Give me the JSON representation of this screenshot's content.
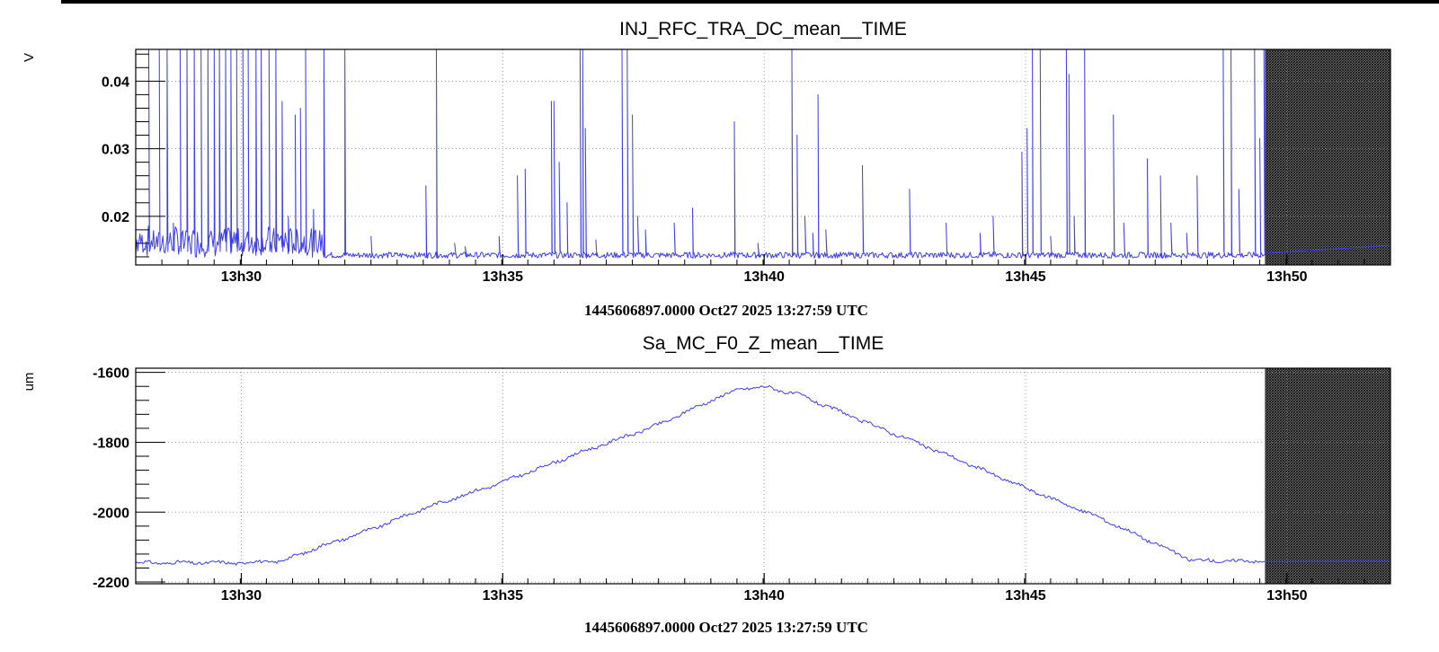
{
  "chart_data": [
    {
      "type": "line",
      "title": "INJ_RFC_TRA_DC_mean__TIME",
      "ylabel": "V",
      "xlabel": "1445606897.0000 Oct27 2025 13:27:59 UTC",
      "x_unit": "minutes since 13:27:59",
      "xlim": [
        0,
        24
      ],
      "ylim": [
        0.0128,
        0.0447
      ],
      "ytick_values": [
        0.02,
        0.03,
        0.04
      ],
      "ytick_labels": [
        "0.02",
        "0.03",
        "0.04"
      ],
      "xtick_values": [
        2.02,
        7.02,
        12.02,
        17.02,
        22.02
      ],
      "xtick_labels": [
        "13h30",
        "13h35",
        "13h40",
        "13h45",
        "13h50"
      ],
      "grid": true,
      "no_data_region": [
        21.6,
        24
      ],
      "line_color": "#3d3df5",
      "baseline": 0.0138,
      "spikes": [
        [
          0.25,
          0.045
        ],
        [
          0.45,
          0.045
        ],
        [
          0.6,
          0.045
        ],
        [
          0.72,
          0.019
        ],
        [
          0.85,
          0.045
        ],
        [
          0.98,
          0.045
        ],
        [
          1.12,
          0.045
        ],
        [
          1.25,
          0.045
        ],
        [
          1.38,
          0.045
        ],
        [
          1.5,
          0.045
        ],
        [
          1.6,
          0.045
        ],
        [
          1.72,
          0.045
        ],
        [
          1.82,
          0.045
        ],
        [
          1.93,
          0.045
        ],
        [
          2.05,
          0.045
        ],
        [
          2.15,
          0.045
        ],
        [
          2.3,
          0.045
        ],
        [
          2.4,
          0.045
        ],
        [
          2.55,
          0.045
        ],
        [
          2.68,
          0.045
        ],
        [
          2.8,
          0.037
        ],
        [
          2.92,
          0.02
        ],
        [
          3.05,
          0.035
        ],
        [
          3.15,
          0.036
        ],
        [
          3.25,
          0.045
        ],
        [
          3.4,
          0.021
        ],
        [
          3.6,
          0.045
        ],
        [
          4.0,
          0.045
        ],
        [
          4.5,
          0.017
        ],
        [
          5.55,
          0.0245
        ],
        [
          5.75,
          0.045
        ],
        [
          6.1,
          0.016
        ],
        [
          6.3,
          0.0155
        ],
        [
          6.95,
          0.017
        ],
        [
          7.3,
          0.026
        ],
        [
          7.45,
          0.027
        ],
        [
          7.95,
          0.037
        ],
        [
          8.0,
          0.037
        ],
        [
          8.1,
          0.028
        ],
        [
          8.25,
          0.022
        ],
        [
          8.5,
          0.045
        ],
        [
          8.55,
          0.045
        ],
        [
          8.6,
          0.033
        ],
        [
          8.8,
          0.0165
        ],
        [
          9.3,
          0.045
        ],
        [
          9.4,
          0.045
        ],
        [
          9.5,
          0.035
        ],
        [
          9.6,
          0.02
        ],
        [
          9.75,
          0.018
        ],
        [
          10.3,
          0.019
        ],
        [
          10.65,
          0.0212
        ],
        [
          11.45,
          0.034
        ],
        [
          11.9,
          0.016
        ],
        [
          12.55,
          0.045
        ],
        [
          12.65,
          0.032
        ],
        [
          12.8,
          0.02
        ],
        [
          12.95,
          0.0175
        ],
        [
          13.05,
          0.038
        ],
        [
          13.2,
          0.018
        ],
        [
          13.9,
          0.0275
        ],
        [
          14.8,
          0.024
        ],
        [
          15.5,
          0.019
        ],
        [
          16.15,
          0.0175
        ],
        [
          16.4,
          0.02
        ],
        [
          16.95,
          0.0295
        ],
        [
          17.05,
          0.033
        ],
        [
          17.15,
          0.045
        ],
        [
          17.3,
          0.045
        ],
        [
          17.5,
          0.017
        ],
        [
          17.8,
          0.045
        ],
        [
          17.85,
          0.041
        ],
        [
          17.95,
          0.02
        ],
        [
          18.15,
          0.045
        ],
        [
          18.7,
          0.035
        ],
        [
          18.9,
          0.019
        ],
        [
          19.35,
          0.0285
        ],
        [
          19.6,
          0.026
        ],
        [
          19.8,
          0.019
        ],
        [
          20.1,
          0.0175
        ],
        [
          20.3,
          0.026
        ],
        [
          20.8,
          0.045
        ],
        [
          20.95,
          0.045
        ],
        [
          21.1,
          0.024
        ],
        [
          21.4,
          0.045
        ],
        [
          21.5,
          0.0315
        ],
        [
          21.58,
          0.045
        ]
      ]
    },
    {
      "type": "line",
      "title": "Sa_MC_F0_Z_mean__TIME",
      "ylabel": "um",
      "xlabel": "1445606897.0000 Oct27 2025 13:27:59 UTC",
      "x_unit": "minutes since 13:27:59",
      "xlim": [
        0,
        24
      ],
      "ylim": [
        -2205,
        -1588
      ],
      "ytick_values": [
        -2200,
        -2000,
        -1800,
        -1600
      ],
      "ytick_labels": [
        "-2200",
        "-2000",
        "-1800",
        "-1600"
      ],
      "xtick_values": [
        2.02,
        7.02,
        12.02,
        17.02,
        22.02
      ],
      "xtick_labels": [
        "13h30",
        "13h35",
        "13h40",
        "13h45",
        "13h50"
      ],
      "grid": true,
      "no_data_region": [
        21.6,
        24
      ],
      "line_color": "#3d3df5",
      "points": [
        [
          0,
          -2145
        ],
        [
          2.0,
          -2145
        ],
        [
          2.8,
          -2140
        ],
        [
          3.5,
          -2100
        ],
        [
          4.5,
          -2050
        ],
        [
          5.5,
          -1990
        ],
        [
          7.0,
          -1915
        ],
        [
          8.5,
          -1830
        ],
        [
          10.0,
          -1750
        ],
        [
          11.0,
          -1680
        ],
        [
          11.6,
          -1645
        ],
        [
          12.1,
          -1643
        ],
        [
          12.7,
          -1665
        ],
        [
          14.0,
          -1745
        ],
        [
          15.5,
          -1835
        ],
        [
          17.0,
          -1930
        ],
        [
          18.5,
          -2020
        ],
        [
          19.5,
          -2090
        ],
        [
          20.2,
          -2138
        ],
        [
          21.0,
          -2140
        ],
        [
          21.6,
          -2140
        ]
      ]
    }
  ]
}
